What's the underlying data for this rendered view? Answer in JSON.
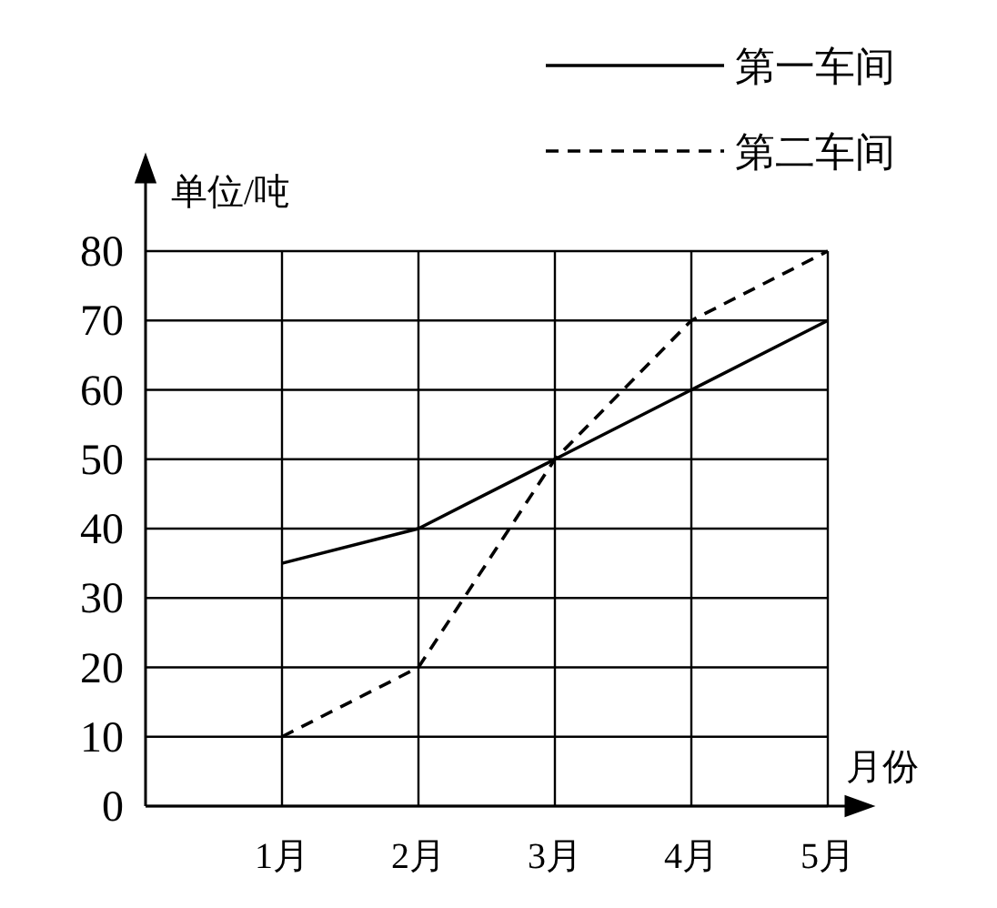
{
  "chart_data": {
    "type": "line",
    "xlabel": "月份",
    "ylabel": "单位/吨",
    "categories": [
      "1月",
      "2月",
      "3月",
      "4月",
      "5月"
    ],
    "series": [
      {
        "name": "第一车间",
        "color": "#000000",
        "line_style": "solid",
        "values": [
          35,
          40,
          50,
          60,
          70
        ]
      },
      {
        "name": "第二车间",
        "color": "#000000",
        "line_style": "dashed",
        "values": [
          10,
          20,
          50,
          70,
          80
        ]
      }
    ],
    "ylim": [
      0,
      80
    ],
    "yticks": [
      0,
      10,
      20,
      30,
      40,
      50,
      60,
      70,
      80
    ],
    "grid": true,
    "legend": "top right"
  }
}
